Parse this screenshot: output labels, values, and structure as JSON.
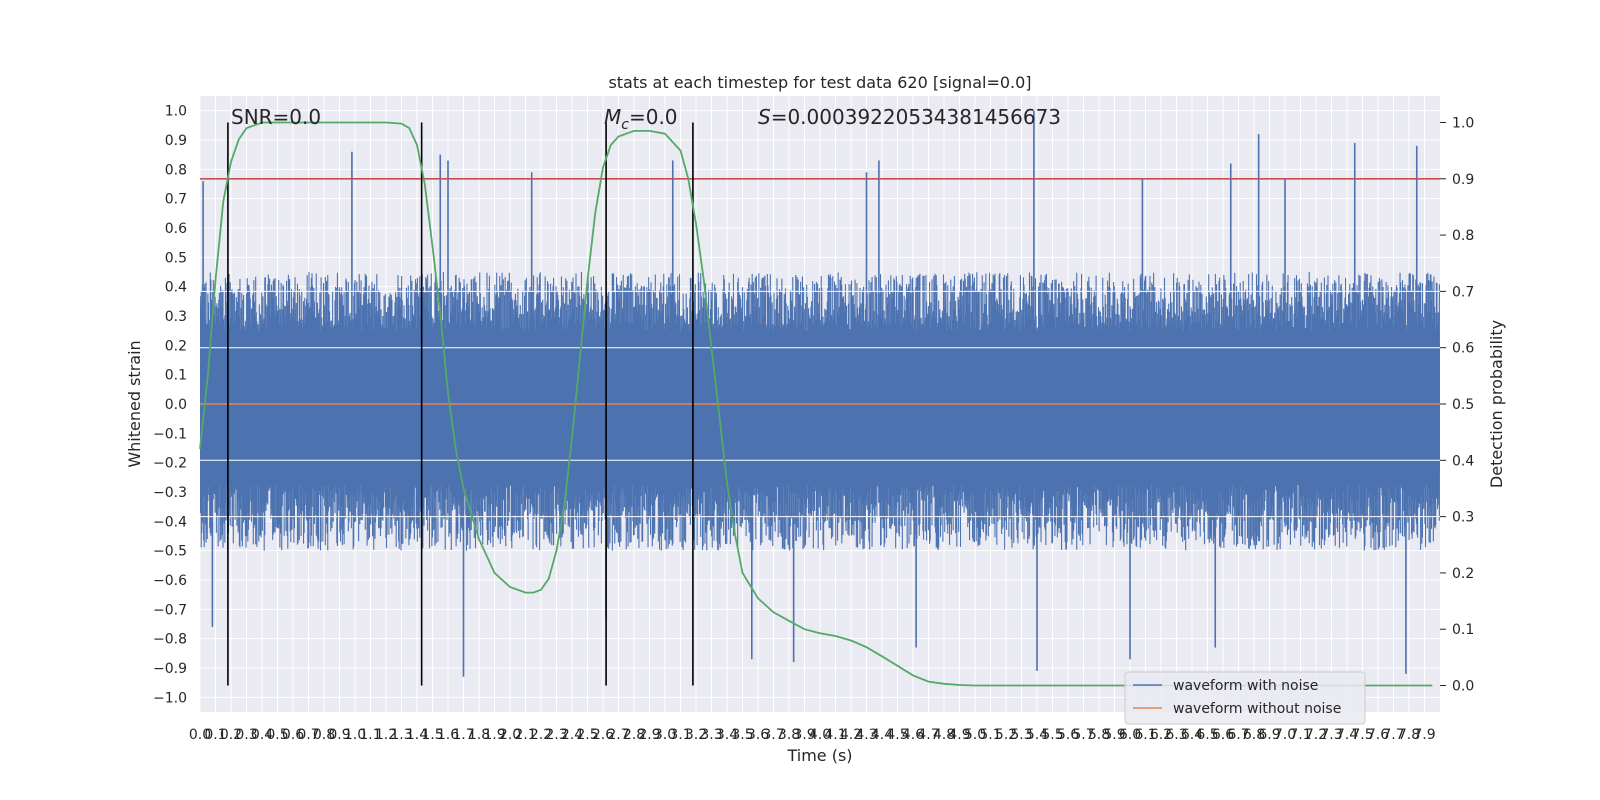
{
  "chart_data": {
    "type": "line",
    "title": "stats at each timestep for test data 620 [signal=0.0]",
    "xlabel": "Time (s)",
    "ylabel": "Whitened strain",
    "y2label": "Detection probability",
    "xlim": [
      0.0,
      8.0
    ],
    "ylim": [
      -1.05,
      1.05
    ],
    "y2lim": [
      -0.047,
      1.047
    ],
    "grid": true,
    "legend_position": "lower-right",
    "x_ticks": [
      "0.0",
      "0.1",
      "0.2",
      "0.3",
      "0.4",
      "0.5",
      "0.6",
      "0.7",
      "0.8",
      "0.9",
      "1.0",
      "1.1",
      "1.2",
      "1.3",
      "1.4",
      "1.5",
      "1.6",
      "1.7",
      "1.8",
      "1.9",
      "2.0",
      "2.1",
      "2.2",
      "2.3",
      "2.4",
      "2.5",
      "2.6",
      "2.7",
      "2.8",
      "2.9",
      "3.0",
      "3.1",
      "3.2",
      "3.3",
      "3.4",
      "3.5",
      "3.6",
      "3.7",
      "3.8",
      "3.9",
      "4.0",
      "4.1",
      "4.2",
      "4.3",
      "4.4",
      "4.5",
      "4.6",
      "4.7",
      "4.8",
      "4.9",
      "5.0",
      "5.1",
      "5.2",
      "5.3",
      "5.4",
      "5.5",
      "5.6",
      "5.7",
      "5.8",
      "5.9",
      "6.0",
      "6.1",
      "6.2",
      "6.3",
      "6.4",
      "6.5",
      "6.6",
      "6.7",
      "6.8",
      "6.9",
      "7.0",
      "7.1",
      "7.2",
      "7.3",
      "7.4",
      "7.5",
      "7.6",
      "7.7",
      "7.8",
      "7.9"
    ],
    "y_ticks": [
      "1.0",
      "0.9",
      "0.8",
      "0.7",
      "0.6",
      "0.5",
      "0.4",
      "0.3",
      "0.2",
      "0.1",
      "0.0",
      "−0.1",
      "−0.2",
      "−0.3",
      "−0.4",
      "−0.5",
      "−0.6",
      "−0.7",
      "−0.8",
      "−0.9",
      "−1.0"
    ],
    "y_tick_values": [
      1.0,
      0.9,
      0.8,
      0.7,
      0.6,
      0.5,
      0.4,
      0.3,
      0.2,
      0.1,
      0.0,
      -0.1,
      -0.2,
      -0.3,
      -0.4,
      -0.5,
      -0.6,
      -0.7,
      -0.8,
      -0.9,
      -1.0
    ],
    "y2_ticks": [
      "1.0",
      "0.9",
      "0.8",
      "0.7",
      "0.6",
      "0.5",
      "0.4",
      "0.3",
      "0.2",
      "0.1",
      "0.0"
    ],
    "y2_tick_values": [
      1.0,
      0.9,
      0.8,
      0.7,
      0.6,
      0.5,
      0.4,
      0.3,
      0.2,
      0.1,
      0.0
    ],
    "annotations": [
      {
        "text": "SNR=0.0",
        "x": 0.2
      },
      {
        "text_italic": "M",
        "text_sub": "c",
        "text": "=0.0",
        "x": 2.6
      },
      {
        "text_italic": "S",
        "text": "=0.00039220534381456673",
        "x": 3.6
      }
    ],
    "vertical_lines_x": [
      0.18,
      1.43,
      2.62,
      3.18
    ],
    "threshold_line": {
      "value": 0.9,
      "axis": "y2",
      "color": "#c44e52"
    },
    "noise_waveform": {
      "name": "waveform with noise",
      "color": "#4c72b0",
      "envelope_upper": 0.45,
      "envelope_lower": -0.5,
      "peak_spikes": [
        [
          0.02,
          0.76
        ],
        [
          0.98,
          0.86
        ],
        [
          1.55,
          0.85
        ],
        [
          1.6,
          0.83
        ],
        [
          2.14,
          0.79
        ],
        [
          3.05,
          0.83
        ],
        [
          4.3,
          0.79
        ],
        [
          4.38,
          0.83
        ],
        [
          5.38,
          1.0
        ],
        [
          6.08,
          0.77
        ],
        [
          6.65,
          0.82
        ],
        [
          6.83,
          0.92
        ],
        [
          7.0,
          0.77
        ],
        [
          7.45,
          0.89
        ],
        [
          7.85,
          0.88
        ]
      ],
      "trough_spikes": [
        [
          0.08,
          -0.76
        ],
        [
          1.7,
          -0.93
        ],
        [
          2.62,
          -0.73
        ],
        [
          3.56,
          -0.87
        ],
        [
          3.83,
          -0.88
        ],
        [
          4.62,
          -0.83
        ],
        [
          5.4,
          -0.91
        ],
        [
          6.0,
          -0.87
        ],
        [
          6.55,
          -0.83
        ],
        [
          7.78,
          -0.92
        ]
      ]
    },
    "clean_waveform": {
      "name": "waveform without noise",
      "color": "#dd8452",
      "value": 0.0
    },
    "probability": {
      "name": "Detection probability",
      "color": "#55a868",
      "x": [
        0.0,
        0.05,
        0.1,
        0.15,
        0.2,
        0.25,
        0.3,
        0.35,
        0.4,
        0.5,
        0.6,
        0.8,
        1.0,
        1.2,
        1.3,
        1.35,
        1.4,
        1.45,
        1.5,
        1.55,
        1.6,
        1.65,
        1.7,
        1.8,
        1.9,
        2.0,
        2.1,
        2.15,
        2.2,
        2.25,
        2.3,
        2.35,
        2.4,
        2.45,
        2.5,
        2.55,
        2.6,
        2.65,
        2.7,
        2.75,
        2.8,
        2.9,
        3.0,
        3.1,
        3.15,
        3.2,
        3.25,
        3.3,
        3.35,
        3.4,
        3.45,
        3.5,
        3.6,
        3.7,
        3.8,
        3.9,
        4.0,
        4.1,
        4.2,
        4.3,
        4.4,
        4.5,
        4.6,
        4.7,
        4.8,
        4.9,
        5.0,
        5.2,
        5.5,
        6.0,
        7.0,
        7.95
      ],
      "y": [
        0.42,
        0.55,
        0.72,
        0.86,
        0.93,
        0.97,
        0.99,
        0.995,
        1.0,
        1.0,
        1.0,
        1.0,
        1.0,
        1.0,
        0.998,
        0.99,
        0.96,
        0.89,
        0.78,
        0.66,
        0.52,
        0.42,
        0.35,
        0.26,
        0.2,
        0.175,
        0.165,
        0.165,
        0.17,
        0.19,
        0.24,
        0.32,
        0.44,
        0.58,
        0.72,
        0.84,
        0.92,
        0.96,
        0.975,
        0.98,
        0.985,
        0.985,
        0.98,
        0.95,
        0.9,
        0.82,
        0.72,
        0.6,
        0.48,
        0.36,
        0.27,
        0.2,
        0.155,
        0.13,
        0.115,
        0.1,
        0.093,
        0.088,
        0.08,
        0.068,
        0.052,
        0.035,
        0.018,
        0.007,
        0.003,
        0.001,
        0.0,
        0.0,
        0.0,
        0.0,
        0.0,
        0.0
      ]
    }
  },
  "legend": {
    "noise_label": "waveform with noise",
    "clean_label": "waveform without noise"
  }
}
